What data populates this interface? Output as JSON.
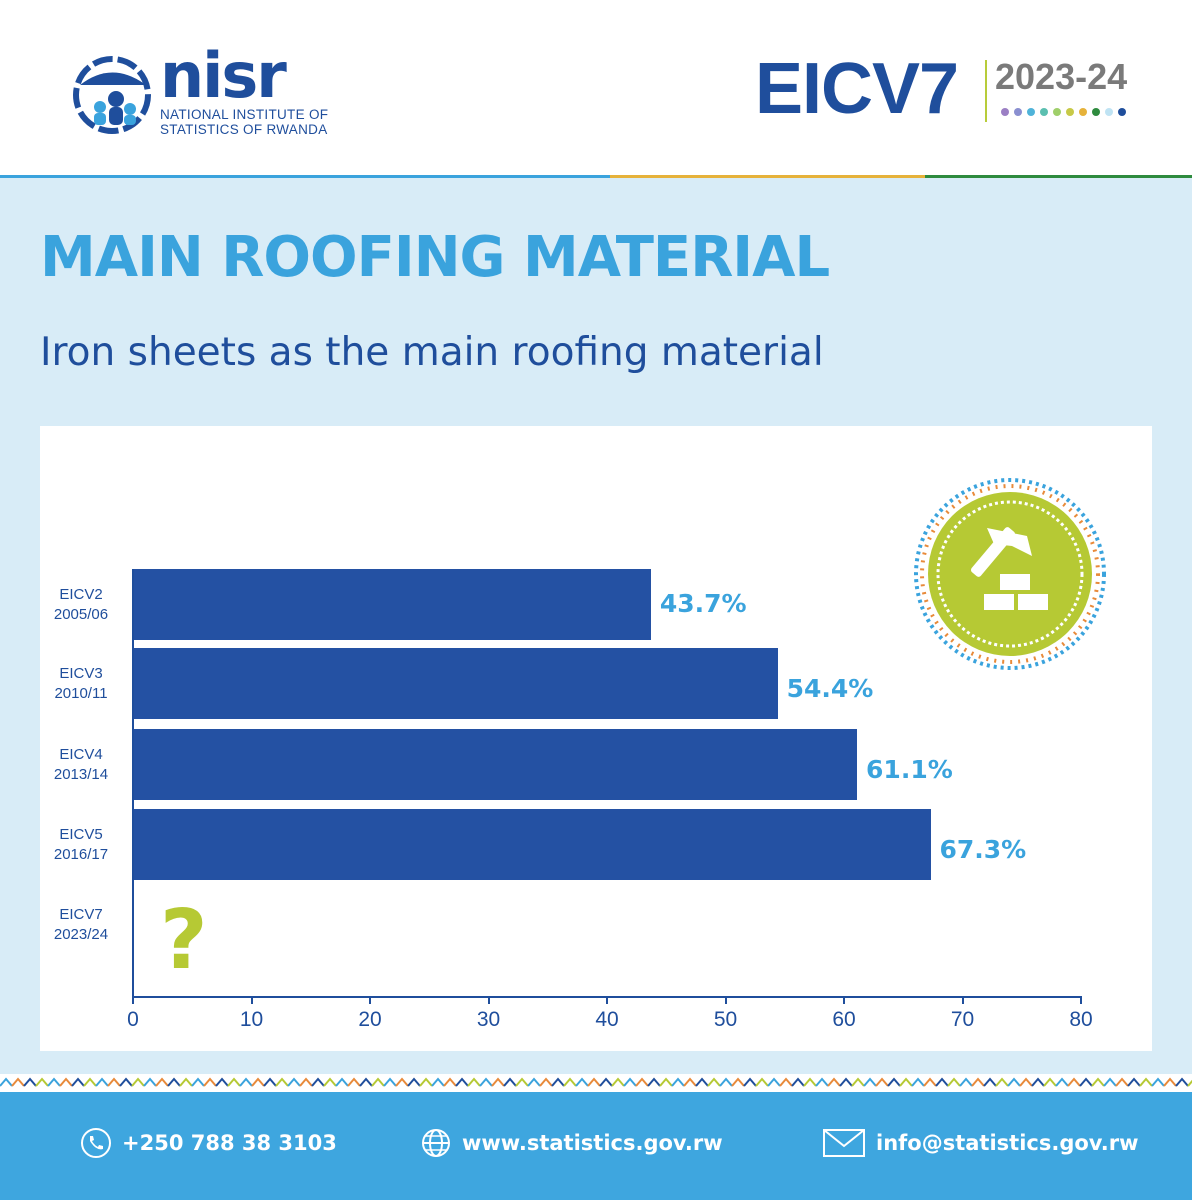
{
  "header": {
    "logo_name": "nisr",
    "logo_sub_line1": "NATIONAL INSTITUTE OF",
    "logo_sub_line2": "STATISTICS OF RWANDA",
    "survey": "EICV7",
    "survey_years": "2023-24",
    "dot_colors": [
      "#9b7fc4",
      "#8a8fd0",
      "#4fb3d9",
      "#5bbfb0",
      "#9fcf6a",
      "#c7c947",
      "#e6b23a",
      "#2e8b3e",
      "#bfe3f3",
      "#1f4e9c"
    ]
  },
  "title": "MAIN ROOFING MATERIAL",
  "subtitle": "Iron sheets as the main roofing material",
  "chart_data": {
    "type": "bar",
    "orientation": "horizontal",
    "categories": [
      {
        "line1": "EICV2",
        "line2": "2005/06"
      },
      {
        "line1": "EICV3",
        "line2": "2010/11"
      },
      {
        "line1": "EICV4",
        "line2": "2013/14"
      },
      {
        "line1": "EICV5",
        "line2": "2016/17"
      },
      {
        "line1": "EICV7",
        "line2": "2023/24"
      }
    ],
    "values": [
      43.7,
      54.4,
      61.1,
      67.3,
      null
    ],
    "value_labels": [
      "43.7%",
      "54.4%",
      "61.1%",
      "67.3%",
      ""
    ],
    "missing_marker": "?",
    "xlim": [
      0,
      80
    ],
    "xticks": [
      0,
      10,
      20,
      30,
      40,
      50,
      60,
      70,
      80
    ],
    "grid": false,
    "bar_color": "#2451a3",
    "label_color": "#3aa3dd"
  },
  "footer": {
    "phone": "+250 788 38 3103",
    "website": "www.statistics.gov.rw",
    "email": "info@statistics.gov.rw"
  },
  "colors": {
    "brand_blue": "#1f4e9c",
    "accent_blue": "#3aa3dd",
    "panel_bg": "#d8ecf7",
    "badge_green": "#b6c934"
  }
}
